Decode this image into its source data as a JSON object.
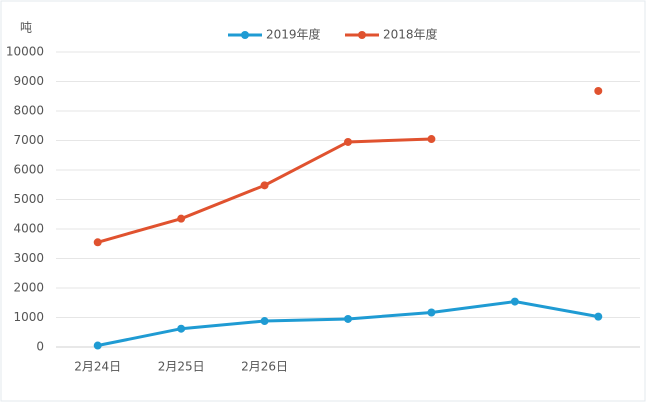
{
  "chart_data": {
    "type": "line",
    "y_axis_label": "吨",
    "categories": [
      "2月24日",
      "2月25日",
      "2月26日",
      null,
      null,
      null,
      null
    ],
    "series": [
      {
        "name": "2019年度",
        "color": "#1f9bd3",
        "values": [
          50,
          620,
          880,
          950,
          1170,
          1540,
          1030
        ]
      },
      {
        "name": "2018年度",
        "color": "#e0522f",
        "values": [
          3550,
          4350,
          5480,
          6950,
          7050,
          null,
          8680
        ]
      }
    ],
    "ylim": [
      0,
      10000
    ],
    "yticks": [
      0,
      1000,
      2000,
      3000,
      4000,
      5000,
      6000,
      7000,
      8000,
      9000,
      10000
    ],
    "grid": true,
    "legend": "top"
  }
}
